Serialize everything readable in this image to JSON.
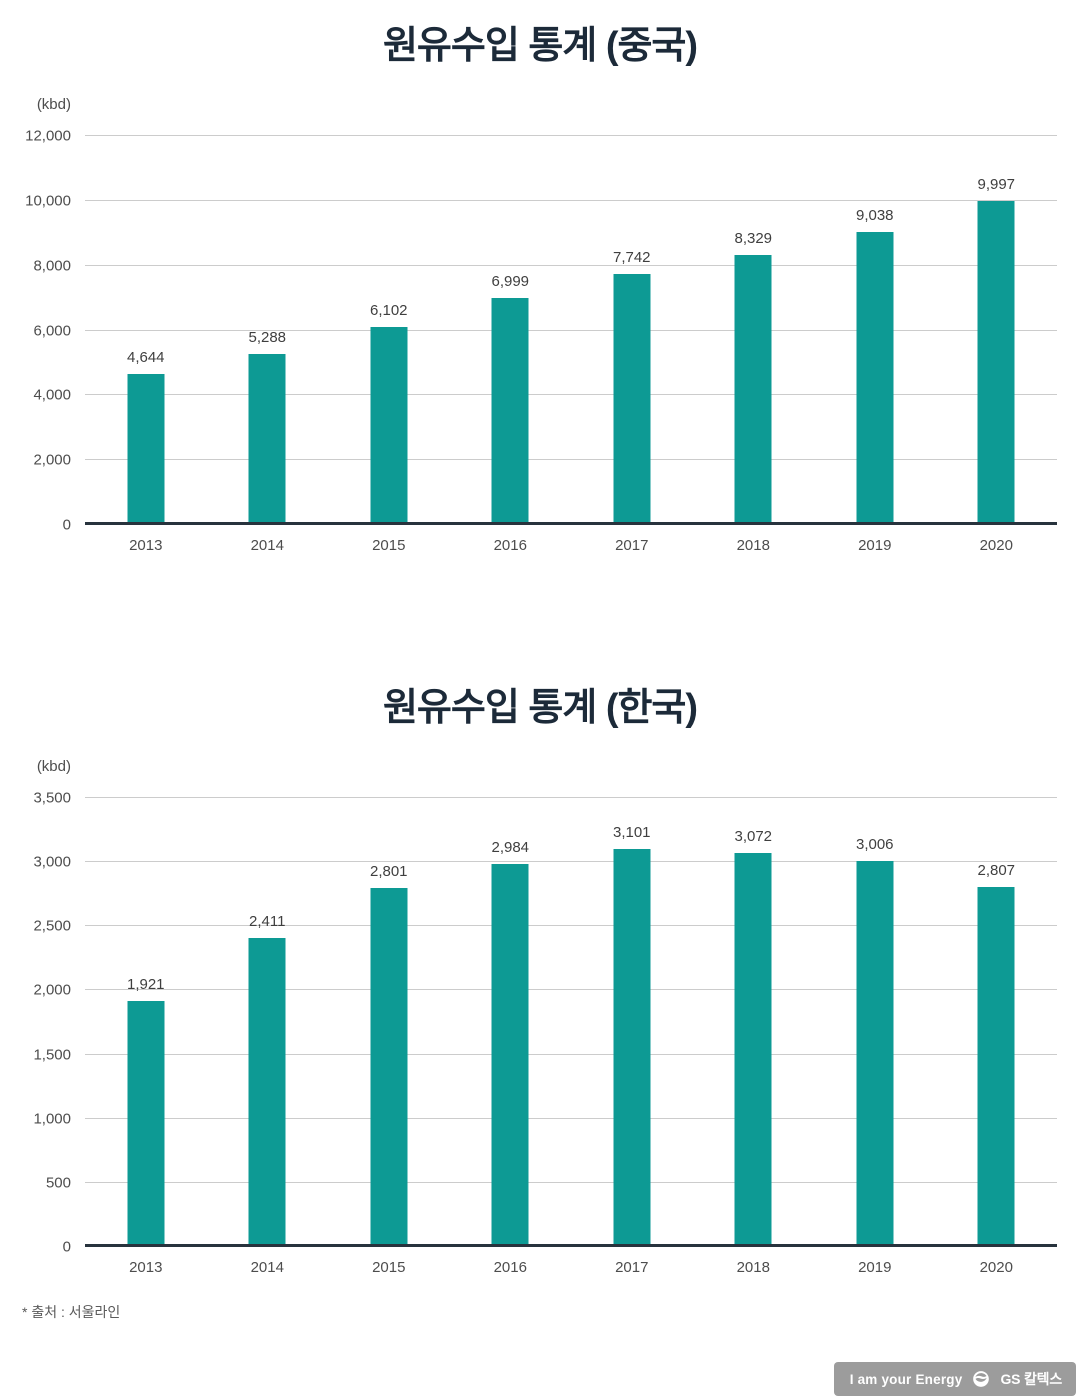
{
  "chart_data": [
    {
      "type": "bar",
      "title": "원유수입 통계 (중국)",
      "unit": "(kbd)",
      "categories": [
        "2013",
        "2014",
        "2015",
        "2016",
        "2017",
        "2018",
        "2019",
        "2020"
      ],
      "values": [
        4644,
        5288,
        6102,
        6999,
        7742,
        8329,
        9038,
        9997
      ],
      "value_labels": [
        "4,644",
        "5,288",
        "6,102",
        "6,999",
        "7,742",
        "8,329",
        "9,038",
        "9,997"
      ],
      "xlabel": "",
      "ylabel": "(kbd)",
      "ylim": [
        0,
        12000
      ],
      "ytick_step": 2000,
      "ytick_labels": [
        "0",
        "2,000",
        "4,000",
        "6,000",
        "8,000",
        "10,000",
        "12,000"
      ],
      "grid": true,
      "legend": "none"
    },
    {
      "type": "bar",
      "title": "원유수입 통계 (한국)",
      "unit": "(kbd)",
      "categories": [
        "2013",
        "2014",
        "2015",
        "2016",
        "2017",
        "2018",
        "2019",
        "2020"
      ],
      "values": [
        1921,
        2411,
        2801,
        2984,
        3101,
        3072,
        3006,
        2807
      ],
      "value_labels": [
        "1,921",
        "2,411",
        "2,801",
        "2,984",
        "3,101",
        "3,072",
        "3,006",
        "2,807"
      ],
      "xlabel": "",
      "ylabel": "(kbd)",
      "ylim": [
        0,
        3500
      ],
      "ytick_step": 500,
      "ytick_labels": [
        "0",
        "500",
        "1,000",
        "1,500",
        "2,000",
        "2,500",
        "3,000",
        "3,500"
      ],
      "grid": true,
      "legend": "none"
    }
  ],
  "colors": {
    "bar": "#0d9a94",
    "title": "#1c2a39",
    "gridline": "#cccccc",
    "axis_line": "#28333d",
    "badge_bg": "#9c9c9c"
  },
  "footer": {
    "source_note": "* 출처 : 서울라인"
  },
  "badge": {
    "slogan": "I am your Energy",
    "brand": "GS 칼텍스"
  }
}
